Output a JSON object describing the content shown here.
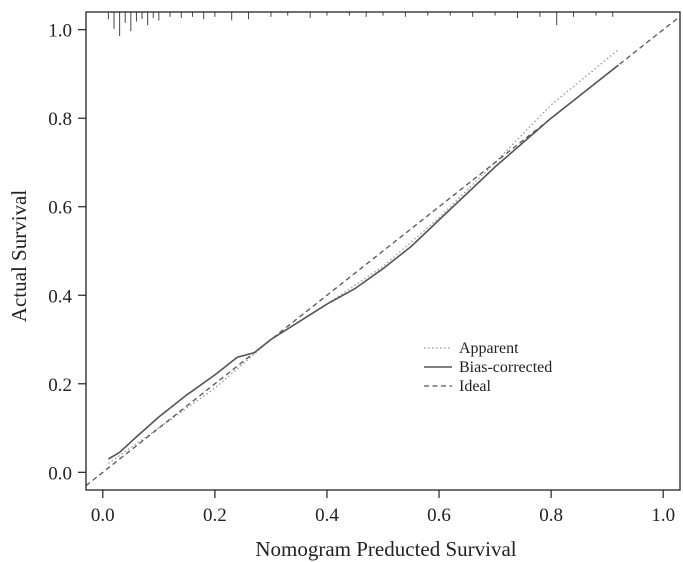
{
  "chart_data": {
    "type": "line",
    "title": "",
    "xlabel": "Nomogram Preducted Survival",
    "ylabel": "Actual Survival",
    "xlim": [
      -0.03,
      1.03
    ],
    "ylim": [
      -0.04,
      1.04
    ],
    "x_ticks": [
      "0.0",
      "0.2",
      "0.4",
      "0.6",
      "0.8",
      "1.0"
    ],
    "y_ticks": [
      "0.0",
      "0.2",
      "0.4",
      "0.6",
      "0.8",
      "1.0"
    ],
    "grid": false,
    "legend_position": "center-right",
    "series": [
      {
        "name": "Apparent",
        "style": "dotted",
        "color": "#999999",
        "x": [
          0.01,
          0.1,
          0.2,
          0.25,
          0.3,
          0.4,
          0.5,
          0.6,
          0.7,
          0.8,
          0.92
        ],
        "y": [
          0.02,
          0.1,
          0.19,
          0.245,
          0.3,
          0.38,
          0.465,
          0.575,
          0.7,
          0.83,
          0.955
        ]
      },
      {
        "name": "Bias-corrected",
        "style": "solid",
        "color": "#555555",
        "x": [
          0.01,
          0.03,
          0.06,
          0.1,
          0.15,
          0.2,
          0.24,
          0.27,
          0.3,
          0.35,
          0.4,
          0.45,
          0.5,
          0.55,
          0.6,
          0.7,
          0.8,
          0.92
        ],
        "y": [
          0.03,
          0.045,
          0.08,
          0.125,
          0.175,
          0.22,
          0.26,
          0.27,
          0.3,
          0.34,
          0.38,
          0.415,
          0.46,
          0.51,
          0.57,
          0.69,
          0.8,
          0.92
        ]
      },
      {
        "name": "Ideal",
        "style": "dashed",
        "color": "#555555",
        "x": [
          -0.03,
          1.03
        ],
        "y": [
          -0.03,
          1.03
        ]
      }
    ],
    "rug": {
      "position": "top",
      "x": [
        0.01,
        0.02,
        0.03,
        0.04,
        0.05,
        0.06,
        0.07,
        0.08,
        0.09,
        0.1,
        0.12,
        0.14,
        0.16,
        0.18,
        0.2,
        0.23,
        0.26,
        0.3,
        0.33,
        0.37,
        0.4,
        0.44,
        0.47,
        0.5,
        0.54,
        0.58,
        0.62,
        0.66,
        0.7,
        0.74,
        0.78,
        0.81,
        0.84,
        0.88,
        0.91
      ],
      "heights": [
        0.3,
        0.7,
        1.0,
        0.45,
        0.8,
        0.4,
        0.3,
        0.55,
        0.25,
        0.35,
        0.2,
        0.25,
        0.2,
        0.3,
        0.2,
        0.35,
        0.3,
        0.2,
        0.15,
        0.25,
        0.15,
        0.15,
        0.2,
        0.15,
        0.2,
        0.15,
        0.15,
        0.2,
        0.15,
        0.25,
        0.2,
        0.55,
        0.2,
        0.15,
        0.2
      ]
    }
  }
}
